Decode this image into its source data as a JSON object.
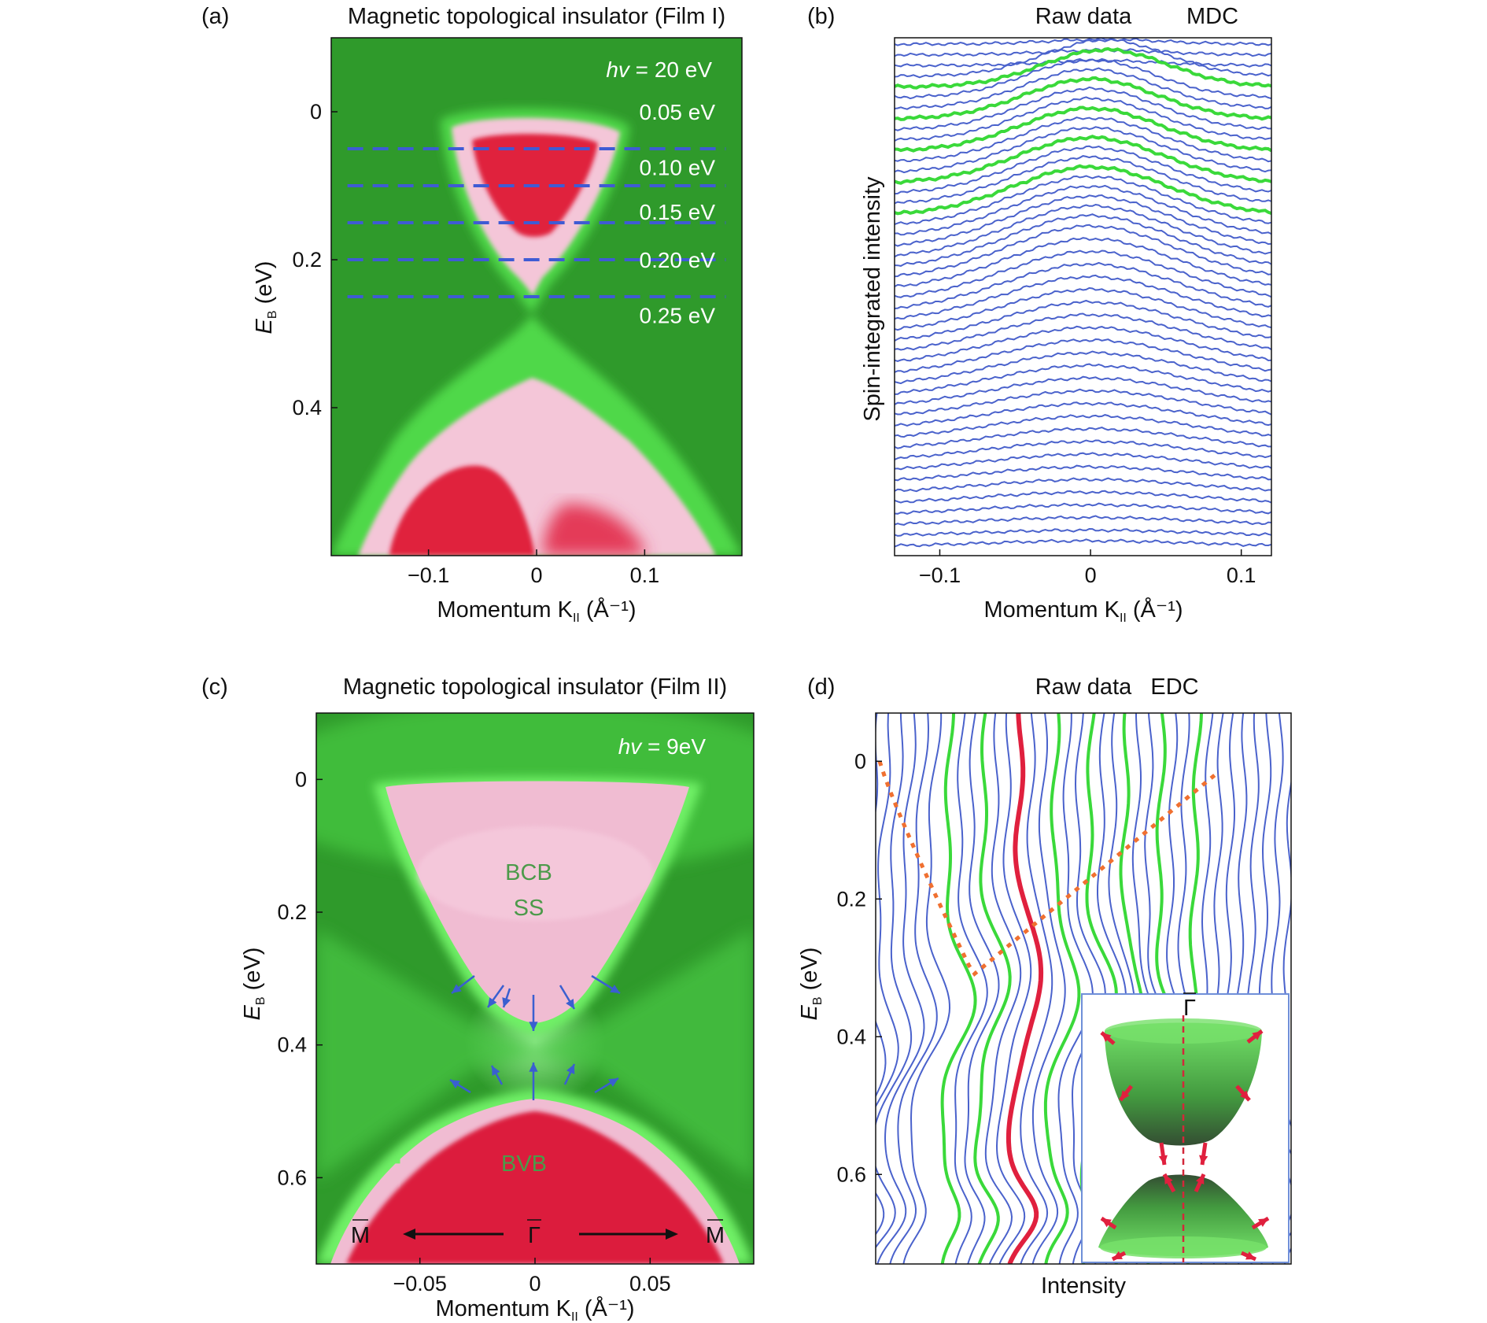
{
  "chart_data": [
    {
      "panel": "(a)",
      "type": "heatmap",
      "title": "Magnetic topological insulator (Film I)",
      "annotation": "hv = 20 eV",
      "xlabel": "Momentum K",
      "xlabel_sub": "II",
      "xlabel_unit": "(Å⁻¹)",
      "ylabel": "E",
      "ylabel_sub": "B",
      "ylabel_unit": "(eV)",
      "xlim": [
        -0.19,
        0.19
      ],
      "ylim": [
        -0.1,
        0.6
      ],
      "x_ticks": [
        -0.1,
        0,
        0.1
      ],
      "x_tick_labels": [
        "−0.1",
        "0",
        "0.1"
      ],
      "y_ticks": [
        0,
        0.2,
        0.4
      ],
      "y_tick_labels": [
        "0",
        "0.2",
        "0.4"
      ],
      "cut_energies": [
        0.05,
        0.1,
        0.15,
        0.2,
        0.25
      ],
      "cut_labels": [
        "0.05 eV",
        "0.10 eV",
        "0.15 eV",
        "0.20 eV",
        "0.25 eV"
      ],
      "dirac_point_eV": 0.32,
      "colors": {
        "background": "#2f9a2b",
        "low": "#4fd84a",
        "mid": "#f4c6d8",
        "high": "#e0203e",
        "cut_line": "#3f5bd4"
      }
    },
    {
      "panel": "(b)",
      "type": "line",
      "title": "Raw data",
      "title2": "MDC",
      "xlabel": "Momentum K",
      "xlabel_sub": "II",
      "xlabel_unit": "(Å⁻¹)",
      "ylabel": "Spin-integrated intensity",
      "xlim": [
        -0.13,
        0.12
      ],
      "x_ticks": [
        -0.1,
        0,
        0.1
      ],
      "x_tick_labels": [
        "−0.1",
        "0",
        "0.1"
      ],
      "curve_count": 48,
      "highlighted_curves": [
        4,
        7,
        10,
        13,
        16
      ],
      "colors": {
        "curve": "#4a62cc",
        "highlight": "#3ad93a"
      }
    },
    {
      "panel": "(c)",
      "type": "heatmap",
      "title": "Magnetic topological insulator (Film II)",
      "annotation": "hv = 9eV",
      "xlabel": "Momentum K",
      "xlabel_sub": "II",
      "xlabel_unit": "(Å⁻¹)",
      "ylabel": "E",
      "ylabel_sub": "B",
      "ylabel_unit": "(eV)",
      "xlim": [
        -0.095,
        0.095
      ],
      "ylim": [
        -0.1,
        0.73
      ],
      "x_ticks": [
        -0.05,
        0,
        0.05
      ],
      "x_tick_labels": [
        "−0.05",
        "0",
        "0.05"
      ],
      "y_ticks": [
        0,
        0.2,
        0.4,
        0.6
      ],
      "y_tick_labels": [
        "0",
        "0.2",
        "0.4",
        "0.6"
      ],
      "band_labels": [
        "BCB",
        "SS",
        "BVB"
      ],
      "k_points": [
        "M",
        "Γ",
        "M"
      ],
      "gap_eV": [
        0.37,
        0.45
      ],
      "colors": {
        "background": "#2f9a2b",
        "low": "#5fe05a",
        "mid": "#f0bcd2",
        "high": "#dc1f3c",
        "arrow": "#3a5fd0"
      }
    },
    {
      "panel": "(d)",
      "type": "line",
      "title": "Raw data",
      "title2": "EDC",
      "xlabel": "Intensity",
      "ylabel": "E",
      "ylabel_sub": "B",
      "ylabel_unit": "(eV)",
      "ylim": [
        -0.07,
        0.73
      ],
      "y_ticks": [
        0,
        0.2,
        0.4,
        0.6
      ],
      "y_tick_labels": [
        "0",
        "0.2",
        "0.4",
        "0.6"
      ],
      "curve_count": 36,
      "inset_label": "Γ",
      "colors": {
        "curve": "#4a62cc",
        "highlight": "#3ad93a",
        "center": "#e0203e",
        "dispersion": "#f07030"
      }
    }
  ]
}
